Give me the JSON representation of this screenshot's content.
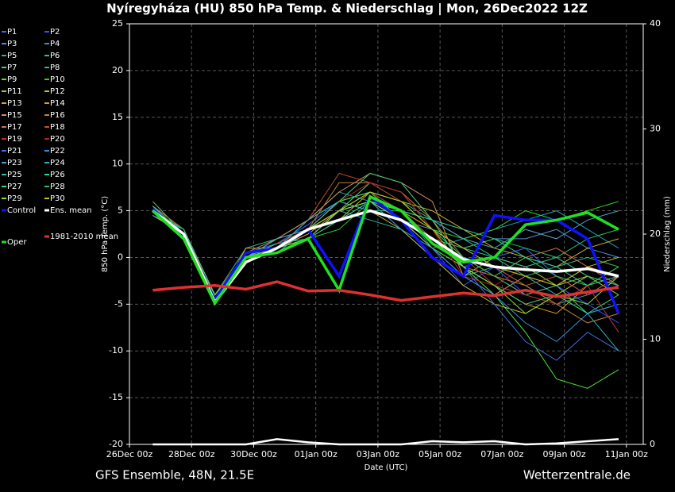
{
  "chart_data": {
    "type": "line",
    "title": "Nyíregyháza  (HU)  850 hPa Temp. & Niederschlag | Mon, 26Dec2022 12Z",
    "y_label": "850 hPa Temp. (°C)",
    "y2_label": "Niederschlag (mm)",
    "x_label": "Date (UTC)",
    "footer_left": "GFS Ensemble, 48N, 21.5E",
    "footer_right": "Wetterzentrale.de",
    "xlim": [
      0,
      397
    ],
    "xticks": [
      {
        "value": 0,
        "label": "26Dec 00z"
      },
      {
        "value": 48,
        "label": "28Dec 00z"
      },
      {
        "value": 96,
        "label": "30Dec 00z"
      },
      {
        "value": 144,
        "label": "01Jan 00z"
      },
      {
        "value": 192,
        "label": "03Jan 00z"
      },
      {
        "value": 240,
        "label": "05Jan 00z"
      },
      {
        "value": 288,
        "label": "07Jan 00z"
      },
      {
        "value": 336,
        "label": "09Jan 00z"
      },
      {
        "value": 384,
        "label": "11Jan 00z"
      }
    ],
    "ylim": [
      -20,
      25
    ],
    "yticks": [
      -20,
      -15,
      -10,
      -5,
      0,
      5,
      10,
      15,
      20,
      25
    ],
    "y2lim": [
      0,
      40
    ],
    "y2ticks": [
      0,
      10,
      20,
      30,
      40
    ],
    "grid": true,
    "x": [
      18,
      42,
      66,
      90,
      114,
      138,
      162,
      186,
      210,
      234,
      258,
      282,
      306,
      330,
      354,
      378
    ],
    "series": [
      {
        "name": "P1",
        "color": "#4060ff",
        "values": [
          5,
          3,
          -4.5,
          0.5,
          1.5,
          3.5,
          6,
          7,
          5,
          2,
          -1,
          0,
          1,
          -2,
          -4,
          -3
        ]
      },
      {
        "name": "P2",
        "color": "#3050ff",
        "values": [
          5.5,
          2,
          -4,
          0,
          1,
          2.5,
          5,
          6,
          3,
          1,
          -3,
          -1,
          -4,
          -3,
          -5,
          -7
        ]
      },
      {
        "name": "P3",
        "color": "#5090d0",
        "values": [
          5,
          3,
          -5,
          0.5,
          0.5,
          3,
          4,
          6,
          4,
          3,
          1,
          2,
          2,
          3,
          1,
          0
        ]
      },
      {
        "name": "P4",
        "color": "#20a0c0",
        "values": [
          4.5,
          2.5,
          -4.5,
          -0.5,
          1,
          4,
          7,
          6,
          5,
          1,
          2,
          3,
          4,
          5,
          3,
          1
        ]
      },
      {
        "name": "P5",
        "color": "#30b0a0",
        "values": [
          5,
          2,
          -5,
          0,
          1.5,
          3,
          5,
          4,
          3,
          0,
          -2,
          -1,
          -3,
          -5,
          -4,
          -2
        ]
      },
      {
        "name": "P6",
        "color": "#30c080",
        "values": [
          5,
          3,
          -4,
          1,
          2,
          4,
          6,
          7,
          6,
          4,
          2,
          0,
          -2,
          -1,
          0,
          -1
        ]
      },
      {
        "name": "P7",
        "color": "#40d080",
        "values": [
          6,
          2.5,
          -4.5,
          0.5,
          1,
          3,
          5,
          8,
          7,
          3,
          0,
          -2,
          -4,
          -3,
          -6,
          -5
        ]
      },
      {
        "name": "P8",
        "color": "#30c060",
        "values": [
          5,
          2,
          -5,
          0,
          1,
          2,
          4,
          5,
          5,
          2,
          1,
          2,
          1,
          0,
          2,
          3
        ]
      },
      {
        "name": "P9",
        "color": "#50e040",
        "values": [
          5,
          3,
          -4,
          0,
          2,
          3,
          6,
          7,
          4,
          1,
          -1,
          -4,
          -8,
          -13,
          -14,
          -12
        ]
      },
      {
        "name": "P10",
        "color": "#30d020",
        "values": [
          5,
          2,
          -4.5,
          0.5,
          1,
          2,
          3,
          6,
          5,
          3,
          2,
          3,
          5,
          4,
          5,
          6
        ]
      },
      {
        "name": "P11",
        "color": "#a0d040",
        "values": [
          5,
          3,
          -5,
          0,
          1,
          3,
          5,
          6,
          4,
          1,
          -2,
          0,
          -1,
          -3,
          -2,
          -4
        ]
      },
      {
        "name": "P12",
        "color": "#c0c030",
        "values": [
          4.5,
          2.5,
          -4.5,
          0,
          1.5,
          3,
          6,
          5,
          3,
          0,
          -3,
          -5,
          -6,
          -4,
          -2,
          -3
        ]
      },
      {
        "name": "P13",
        "color": "#d0b030",
        "values": [
          5,
          2,
          -5,
          1,
          1,
          3,
          4,
          7,
          6,
          5,
          3,
          1,
          0,
          -1,
          1,
          2
        ]
      },
      {
        "name": "P14",
        "color": "#e0a020",
        "values": [
          5,
          3,
          -4,
          0,
          1,
          2.5,
          5,
          6,
          5,
          3,
          -1,
          -3,
          -5,
          -6,
          -3,
          -1
        ]
      },
      {
        "name": "P15",
        "color": "#d09060",
        "values": [
          5,
          2.5,
          -4.5,
          0.5,
          2,
          4,
          7,
          9,
          8,
          6,
          -2,
          -4,
          -2,
          -3,
          -1,
          -2
        ]
      },
      {
        "name": "P16",
        "color": "#c08040",
        "values": [
          5,
          2,
          -5,
          0,
          1,
          3,
          8,
          8,
          7,
          4,
          0,
          -2,
          -3,
          -5,
          -7,
          -6
        ]
      },
      {
        "name": "P17",
        "color": "#d07050",
        "values": [
          5.5,
          3,
          -4.5,
          0,
          1,
          3,
          5,
          6,
          4,
          2,
          -1,
          -2,
          0,
          1,
          -1,
          -3
        ]
      },
      {
        "name": "P18",
        "color": "#c05030",
        "values": [
          5,
          2,
          -4,
          0.5,
          1,
          4,
          9,
          8,
          6,
          3,
          1,
          -1,
          -3,
          -2,
          -4,
          -2
        ]
      },
      {
        "name": "P19",
        "color": "#c03030",
        "values": [
          5,
          3,
          -5,
          0,
          1.5,
          3,
          5,
          7,
          5,
          2,
          0,
          -3,
          -4,
          -5,
          -3,
          -8
        ]
      },
      {
        "name": "P20",
        "color": "#b02020",
        "values": [
          5,
          2.5,
          -4.5,
          0,
          1,
          3,
          6,
          8,
          7,
          3,
          -2,
          -3,
          -1,
          0,
          -2,
          -3
        ]
      },
      {
        "name": "P21",
        "color": "#4070e0",
        "values": [
          5,
          2,
          -5,
          0.5,
          1,
          3,
          4,
          5,
          4,
          2,
          -1,
          -5,
          -9,
          -11,
          -8,
          -10
        ]
      },
      {
        "name": "P22",
        "color": "#3090e0",
        "values": [
          4.5,
          3,
          -4,
          0,
          1,
          2,
          5,
          6,
          3,
          1,
          -2,
          -4,
          -7,
          -9,
          -6,
          -5
        ]
      },
      {
        "name": "P23",
        "color": "#50a0d0",
        "values": [
          5,
          2.5,
          -5,
          0,
          2,
          3,
          5,
          6,
          5,
          4,
          2,
          1,
          3,
          2,
          4,
          5
        ]
      },
      {
        "name": "P24",
        "color": "#30b0c0",
        "values": [
          5,
          2,
          -4.5,
          0.5,
          1,
          4,
          6,
          5,
          4,
          2,
          0,
          -1,
          -2,
          -4,
          -6,
          -10
        ]
      },
      {
        "name": "P25",
        "color": "#30c0a0",
        "values": [
          5,
          3,
          -4,
          0,
          1,
          3,
          5,
          7,
          6,
          3,
          1,
          0,
          -1,
          0,
          -2,
          -3
        ]
      },
      {
        "name": "P26",
        "color": "#30d0a0",
        "values": [
          5,
          2,
          -5,
          0,
          1.5,
          2,
          4,
          6,
          5,
          4,
          3,
          2,
          0,
          -1,
          -3,
          -2
        ]
      },
      {
        "name": "P27",
        "color": "#40d080",
        "values": [
          5.5,
          2.5,
          -4.5,
          0.5,
          1,
          3,
          6,
          9,
          8,
          4,
          -1,
          -3,
          -5,
          -4,
          -6,
          -4
        ]
      },
      {
        "name": "P28",
        "color": "#30c060",
        "values": [
          5,
          3,
          -5,
          0,
          1,
          3,
          5,
          7,
          6,
          3,
          0,
          -2,
          0,
          -2,
          -3,
          -1
        ]
      },
      {
        "name": "P29",
        "color": "#80e040",
        "values": [
          5,
          2,
          -4,
          0,
          1,
          2,
          5,
          6,
          4,
          2,
          -1,
          -3,
          -6,
          -4,
          -5,
          -2
        ]
      },
      {
        "name": "P30",
        "color": "#c0c020",
        "values": [
          5,
          2.5,
          -4.5,
          0.5,
          1,
          3,
          5,
          7,
          6,
          3,
          1,
          -1,
          -2,
          -3,
          -1,
          0
        ]
      },
      {
        "name": "Control",
        "color": "#1010ff",
        "values": [
          5.2,
          2,
          -4.5,
          0.5,
          1,
          3,
          -2,
          6.5,
          4,
          0,
          -2,
          4.5,
          4,
          4,
          2,
          -6
        ]
      },
      {
        "name": "Ens. mean",
        "color": "#ffffff",
        "values": [
          5,
          2.5,
          -4.8,
          -0.5,
          1,
          3,
          4,
          5,
          4,
          2,
          -0.2,
          -1,
          -1.3,
          -1.5,
          -1.2,
          -2
        ]
      },
      {
        "name": "Oper",
        "color": "#20e020",
        "values": [
          5,
          2,
          -4.9,
          0,
          0.5,
          2,
          -3.5,
          6.5,
          5,
          1.5,
          -0.5,
          0,
          3.5,
          4,
          4.8,
          3
        ]
      },
      {
        "name": "1981-2010 mean",
        "color": "#e03030",
        "values": [
          -3.5,
          -3.2,
          -3,
          -3.4,
          -2.6,
          -3.6,
          -3.5,
          -4,
          -4.6,
          -4.2,
          -3.8,
          -4.1,
          -3.5,
          -4.2,
          -3.7,
          -3.2
        ]
      }
    ],
    "precip_series": [
      {
        "color": "#ffffff",
        "axis": "y2",
        "values": [
          0,
          0,
          0,
          0,
          0.5,
          0.2,
          0,
          0,
          0,
          0.3,
          0.2,
          0.3,
          0,
          0.1,
          0.3,
          0.5
        ]
      }
    ]
  }
}
